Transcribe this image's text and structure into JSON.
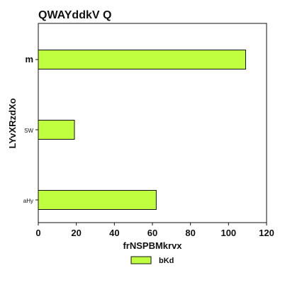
{
  "chart_data": {
    "type": "bar",
    "orientation": "horizontal",
    "title": "QWAYddkV Q",
    "xlabel": "frNSPBMkrvx",
    "ylabel": "LYvXRzdXo",
    "categories": [
      "m",
      "SW",
      "aHy"
    ],
    "series": [
      {
        "name": "bKd",
        "values": [
          109,
          19,
          62
        ],
        "color": "#bfff3f"
      }
    ],
    "xlim": [
      0,
      120
    ],
    "xticks": [
      "0",
      "20",
      "40",
      "60",
      "80",
      "100",
      "120"
    ],
    "grid": false,
    "legend_position": "bottom-center"
  }
}
